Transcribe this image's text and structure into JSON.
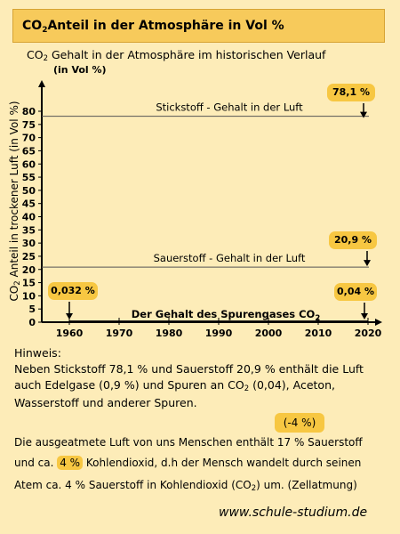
{
  "header": {
    "title_prefix": "CO",
    "title_sub": "2",
    "title_suffix": "Anteil in der Atmosphäre in Vol %"
  },
  "chart_data": {
    "type": "line",
    "title_prefix": "CO",
    "title_sub": "2",
    "title_suffix": " Gehalt in der Atmosphäre im historischen Verlauf",
    "unit": "(in Vol %)",
    "ylabel_prefix": "CO",
    "ylabel_sub": "2",
    "ylabel_suffix": " Anteil in trockener Luft (in Vol %)",
    "xlim": [
      1955,
      2021
    ],
    "ylim": [
      0,
      83
    ],
    "yticks": [
      0,
      5,
      10,
      15,
      20,
      25,
      30,
      35,
      40,
      45,
      50,
      55,
      60,
      65,
      70,
      75,
      80
    ],
    "ytick_labels": [
      "0",
      "5",
      "10",
      "15",
      "20",
      "25",
      "30",
      "35",
      "40",
      "45",
      "50",
      "55",
      "60",
      "65",
      "70",
      "75",
      "80"
    ],
    "xticks": [
      1960,
      1970,
      1980,
      1990,
      2000,
      2010,
      2020
    ],
    "xtick_labels": [
      "1960",
      "1970",
      "1980",
      "1990",
      "2000",
      "2010",
      "2020"
    ],
    "lines": [
      {
        "y": 78.1,
        "label": "Stickstoff - Gehalt in der Luft"
      },
      {
        "y": 20.9,
        "label": "Sauerstoff - Gehalt in der Luft"
      }
    ],
    "trace_label_prefix": "Der Gehalt des Spurengases CO",
    "trace_label_sub": "2",
    "co2_trace": {
      "x": [
        1960,
        2020
      ],
      "y": [
        0.032,
        0.04
      ]
    },
    "annotations": [
      {
        "text": "78,1 %",
        "x": 2019,
        "y": 78.1
      },
      {
        "text": "20,9 %",
        "x": 2019,
        "y": 20.9
      },
      {
        "text": "0,032 %",
        "x": 1960,
        "y": 0.032
      },
      {
        "text": "0,04 %",
        "x": 2019,
        "y": 0.04
      }
    ]
  },
  "hint": {
    "heading": "Hinweis:",
    "line1": "Neben Stickstoff 78,1 % und Sauerstoff 20,9 % enthält die Luft",
    "line2": "auch Edelgase (0,9 %) und Spuren an CO",
    "line2_sub": "2",
    "line2_suffix": " (0,04), Aceton,",
    "line3": "Wasserstoff und anderer Spuren."
  },
  "note": {
    "badge": "(-4 %)",
    "line1": "Die ausgeatmete Luft von uns Menschen enthält 17 % Sauerstoff",
    "line2_prefix": "und ca. ",
    "line2_highlight": "4 %",
    "line2_suffix": " Kohlendioxid, d.h der Mensch wandelt durch seinen",
    "line3_prefix": "Atem ca. 4 % Sauerstoff in Kohlendioxid (CO",
    "line3_sub": "2",
    "line3_suffix": ") um. (Zellatmung)"
  },
  "footer": {
    "url": "www.schule-studium.de"
  },
  "colors": {
    "background": "#fdecb8",
    "accent": "#f7c742",
    "line": "#444444"
  }
}
